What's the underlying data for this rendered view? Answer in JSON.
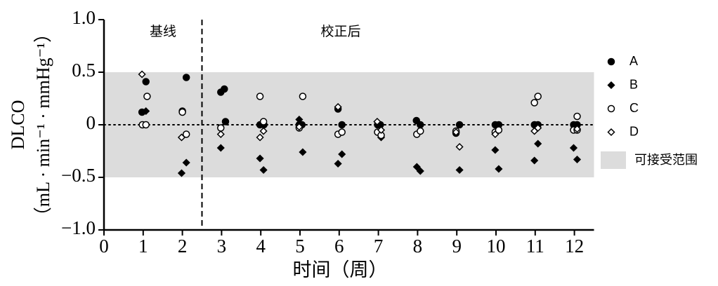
{
  "chart_data": {
    "type": "scatter",
    "ylabel": [
      "DLCO",
      "（mL · min⁻¹ · mmHg⁻¹）"
    ],
    "xlabel": "时间（周）",
    "annotations": [
      "基线",
      "校正后"
    ],
    "divider_x": 2.5,
    "reference_line": 0,
    "band": {
      "name": "可接受范围",
      "range": [
        -0.5,
        0.5
      ],
      "color": "#dcdcdc"
    },
    "xlim": [
      0,
      12.5
    ],
    "xticks": [
      0,
      1,
      2,
      3,
      4,
      5,
      6,
      7,
      8,
      9,
      10,
      11,
      12
    ],
    "ylim": [
      -1,
      1
    ],
    "yticks": [
      {
        "value": -1,
        "label": "−1.0"
      },
      {
        "value": -0.5,
        "label": "−0.5"
      },
      0,
      0.5,
      {
        "value": 1,
        "label": "1.0"
      }
    ],
    "series": [
      {
        "name": "A",
        "color": "#000000",
        "marker": "circle",
        "filled": true,
        "x": [
          0.97,
          1.07,
          2.0,
          2.1,
          2.98,
          3.07,
          3.1,
          3.98,
          4.08,
          4.98,
          5.05,
          5.97,
          6.07,
          6.98,
          7.05,
          7.97,
          8.07,
          8.98,
          9.07,
          9.98,
          10.07,
          10.98,
          11.07,
          11.98,
          12.07
        ],
        "values": [
          0.12,
          0.41,
          0.13,
          0.45,
          0.31,
          0.34,
          0.03,
          0,
          0,
          0,
          0,
          0.15,
          0,
          0,
          0,
          0.04,
          0,
          -0.08,
          0,
          0,
          0,
          0,
          0,
          0,
          0
        ]
      },
      {
        "name": "B",
        "color": "#000000",
        "marker": "diamond",
        "filled": true,
        "x": [
          1.07,
          1.98,
          2.1,
          2.98,
          3.98,
          4.07,
          4.98,
          5.07,
          5.97,
          6.07,
          7.07,
          7.98,
          8.07,
          9.07,
          9.98,
          10.07,
          10.98,
          11.07,
          11.98,
          12.07
        ],
        "values": [
          0.13,
          -0.46,
          -0.36,
          -0.22,
          -0.32,
          -0.43,
          0.05,
          -0.26,
          -0.37,
          -0.28,
          -0.12,
          -0.4,
          -0.44,
          -0.43,
          -0.24,
          -0.42,
          -0.34,
          -0.18,
          -0.22,
          -0.33
        ]
      },
      {
        "name": "C",
        "color": "#000000",
        "marker": "circle",
        "filled": false,
        "x": [
          0.98,
          1.07,
          1.1,
          2.0,
          2.1,
          2.98,
          3.98,
          4.07,
          4.98,
          5.07,
          5.97,
          6.07,
          6.98,
          7.07,
          7.98,
          8.07,
          8.98,
          9.98,
          10.07,
          10.98,
          11.07,
          11.98,
          12.07,
          12.07
        ],
        "values": [
          0,
          0,
          0.27,
          0.12,
          -0.09,
          -0.03,
          0.27,
          0.03,
          -0.03,
          0.27,
          -0.09,
          -0.07,
          -0.07,
          -0.1,
          -0.09,
          -0.06,
          -0.06,
          -0.07,
          -0.05,
          0.21,
          0.27,
          -0.05,
          0.08,
          -0.05
        ]
      },
      {
        "name": "D",
        "color": "#000000",
        "marker": "diamond",
        "filled": false,
        "x": [
          0.97,
          1.98,
          2.98,
          3.98,
          4.07,
          4.98,
          5.97,
          6.97,
          7.07,
          8.98,
          9.07,
          9.98,
          10.98,
          11.07,
          12.07
        ],
        "values": [
          0.48,
          -0.12,
          -0.09,
          -0.12,
          -0.06,
          -0.02,
          0.17,
          0.03,
          -0.05,
          -0.07,
          -0.21,
          -0.09,
          -0.06,
          -0.03,
          -0.04
        ]
      }
    ]
  }
}
